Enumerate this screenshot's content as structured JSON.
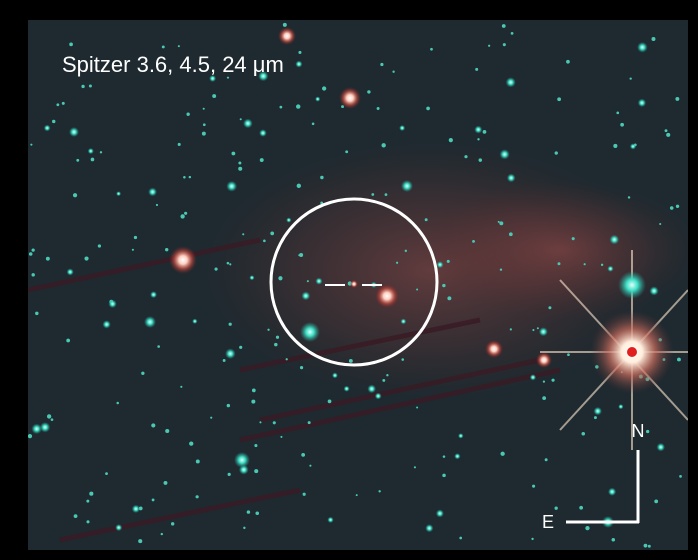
{
  "title": "Spitzer 3.6, 4.5, 24 μm",
  "compass": {
    "north": "N",
    "east": "E"
  }
}
